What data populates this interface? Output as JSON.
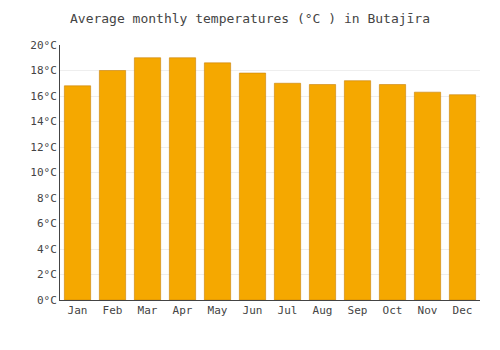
{
  "chart_data": {
    "type": "bar",
    "title": "Average monthly temperatures (°C ) in Butajīra",
    "categories": [
      "Jan",
      "Feb",
      "Mar",
      "Apr",
      "May",
      "Jun",
      "Jul",
      "Aug",
      "Sep",
      "Oct",
      "Nov",
      "Dec"
    ],
    "values": [
      16.8,
      18.0,
      19.0,
      19.0,
      18.6,
      17.8,
      17.0,
      16.9,
      17.2,
      16.9,
      16.3,
      16.1
    ],
    "color": "#F5A800",
    "ylim": [
      0,
      20
    ],
    "yticks": [
      {
        "value": 0,
        "label": "0°C"
      },
      {
        "value": 2,
        "label": "2°C"
      },
      {
        "value": 4,
        "label": "4°C"
      },
      {
        "value": 6,
        "label": "6°C"
      },
      {
        "value": 8,
        "label": "8°C"
      },
      {
        "value": 10,
        "label": "10°C"
      },
      {
        "value": 12,
        "label": "12°C"
      },
      {
        "value": 14,
        "label": "14°C"
      },
      {
        "value": 16,
        "label": "16°C"
      },
      {
        "value": 18,
        "label": "18°C"
      },
      {
        "value": 20,
        "label": "20°C"
      }
    ],
    "grid": true
  }
}
